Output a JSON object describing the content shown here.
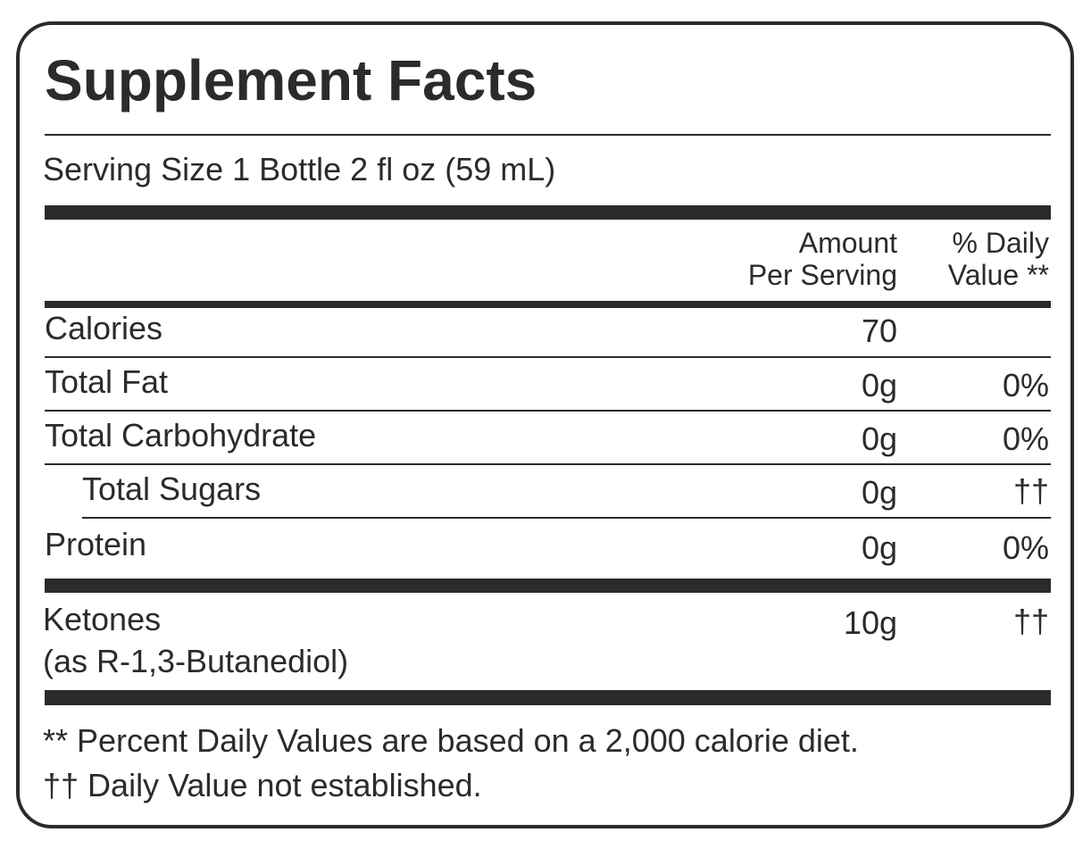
{
  "title": "Supplement Facts",
  "serving_size": "Serving Size 1 Bottle 2 fl oz (59 mL)",
  "table": {
    "header": {
      "amount": [
        "Amount",
        "Per Serving"
      ],
      "daily_value": [
        "% Daily",
        "Value **"
      ]
    },
    "rows": [
      {
        "name": "Calories",
        "amount": "70"
      },
      {
        "name": "Total Fat",
        "amount": "0g",
        "daily_value": "0%"
      },
      {
        "name": "Total Carbohydrate",
        "amount": "0g",
        "daily_value": "0%"
      },
      {
        "name": "Total Sugars",
        "amount": "0g",
        "daily_value": "††"
      },
      {
        "name": "Protein",
        "amount": "0g",
        "daily_value": "0%"
      },
      {
        "name": "Ketones",
        "subname": "(as R-1,3-Butanediol)",
        "amount": "10g",
        "daily_value": "††"
      }
    ]
  },
  "footnotes": [
    "** Percent Daily Values are based on a 2,000 calorie diet.",
    "†† Daily Value not established."
  ]
}
